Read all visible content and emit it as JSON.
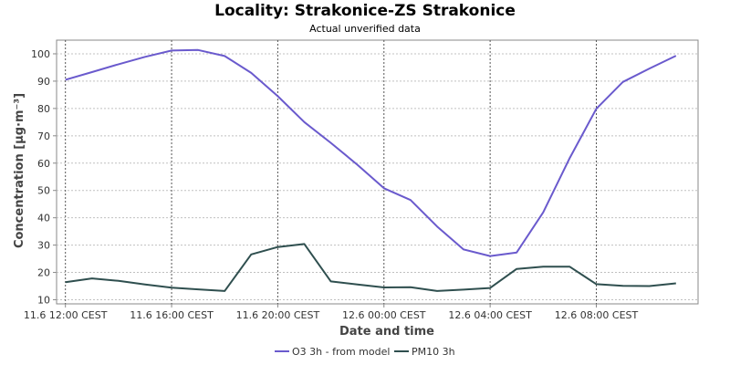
{
  "chart_data": {
    "type": "line",
    "title": "Locality: Strakonice-ZS Strakonice",
    "subtitle": "Actual unverified data",
    "xlabel": "Date and time",
    "ylabel": "Concentration [µg·m⁻³]",
    "x": [
      "11.6 12:00",
      "11.6 13:00",
      "11.6 14:00",
      "11.6 15:00",
      "11.6 16:00",
      "11.6 17:00",
      "11.6 18:00",
      "11.6 19:00",
      "11.6 20:00",
      "11.6 21:00",
      "11.6 22:00",
      "11.6 23:00",
      "12.6 00:00",
      "12.6 01:00",
      "12.6 02:00",
      "12.6 03:00",
      "12.6 04:00",
      "12.6 05:00",
      "12.6 06:00",
      "12.6 07:00",
      "12.6 08:00",
      "12.6 09:00",
      "12.6 10:00",
      "12.6 11:00"
    ],
    "x_tick_labels": [
      "11.6 12:00 CEST",
      "11.6 16:00 CEST",
      "11.6 20:00 CEST",
      "12.6 00:00 CEST",
      "12.6 04:00 CEST",
      "12.6 08:00 CEST"
    ],
    "x_tick_positions": [
      "11.6 12:00",
      "11.6 16:00",
      "11.6 20:00",
      "12.6 00:00",
      "12.6 04:00",
      "12.6 08:00"
    ],
    "y_ticks": [
      10,
      20,
      30,
      40,
      50,
      60,
      70,
      80,
      90,
      100
    ],
    "xlim": [
      "11.6 11:40",
      "12.6 11:50"
    ],
    "ylim": [
      8.5,
      105
    ],
    "grid": true,
    "legend_position": "bottom",
    "series": [
      {
        "name": "O3 3h - from model",
        "color": "#6a5acd",
        "values": [
          90.5,
          93.3,
          96.2,
          98.9,
          101.2,
          101.4,
          99.2,
          93.0,
          84.5,
          75.0,
          67.4,
          59.4,
          50.8,
          46.5,
          36.8,
          28.4,
          26.0,
          27.3,
          42.0,
          61.9,
          79.9,
          89.7,
          94.6,
          99.3
        ]
      },
      {
        "name": "PM10 3h",
        "color": "#2f4f4f",
        "values": [
          16.4,
          17.8,
          16.9,
          15.6,
          14.4,
          13.8,
          13.2,
          26.6,
          29.3,
          30.4,
          16.7,
          15.6,
          14.5,
          14.6,
          13.2,
          13.7,
          14.3,
          21.3,
          22.1,
          22.1,
          15.7,
          15.1,
          15.0,
          16.0
        ]
      }
    ]
  }
}
